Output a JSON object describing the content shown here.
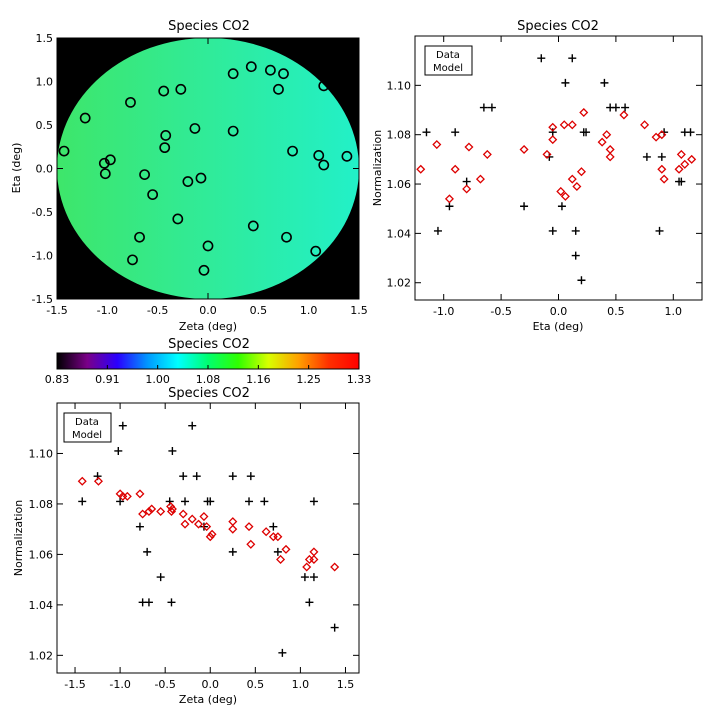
{
  "chart_data": [
    {
      "type": "heatmap",
      "title": "Species CO2",
      "xlabel": "Zeta (deg)",
      "ylabel": "Eta (deg)",
      "xlim": [
        -1.5,
        1.5
      ],
      "ylim": [
        -1.5,
        1.5
      ],
      "x_ticks": [
        "-1.5",
        "-1.0",
        "-0.5",
        "0.0",
        "0.5",
        "1.0",
        "1.5"
      ],
      "y_ticks": [
        "-1.5",
        "-1.0",
        "-0.5",
        "0.0",
        "0.5",
        "1.0",
        "1.5"
      ],
      "disk_color_range": [
        "#3ee66a",
        "#22f0c8"
      ],
      "background_color": "#000000",
      "points": [
        [
          -1.43,
          0.2
        ],
        [
          -1.22,
          0.58
        ],
        [
          -1.03,
          0.06
        ],
        [
          -1.02,
          -0.06
        ],
        [
          -0.97,
          0.1
        ],
        [
          -0.77,
          0.76
        ],
        [
          -0.75,
          -1.05
        ],
        [
          -0.68,
          -0.79
        ],
        [
          -0.63,
          -0.07
        ],
        [
          -0.55,
          -0.3
        ],
        [
          -0.44,
          0.89
        ],
        [
          -0.43,
          0.24
        ],
        [
          -0.42,
          0.38
        ],
        [
          -0.3,
          -0.58
        ],
        [
          -0.27,
          0.91
        ],
        [
          -0.2,
          -0.15
        ],
        [
          -0.13,
          0.46
        ],
        [
          -0.07,
          -0.11
        ],
        [
          -0.04,
          -1.17
        ],
        [
          0.0,
          -0.89
        ],
        [
          0.25,
          1.09
        ],
        [
          0.25,
          0.43
        ],
        [
          0.43,
          1.17
        ],
        [
          0.45,
          -0.66
        ],
        [
          0.62,
          1.13
        ],
        [
          0.7,
          0.91
        ],
        [
          0.75,
          1.09
        ],
        [
          0.78,
          -0.79
        ],
        [
          0.84,
          0.2
        ],
        [
          1.07,
          -0.95
        ],
        [
          1.1,
          0.15
        ],
        [
          1.15,
          0.95
        ],
        [
          1.15,
          0.04
        ],
        [
          1.38,
          0.14
        ]
      ]
    },
    {
      "type": "colorbar",
      "title": "Species CO2",
      "range": [
        0.83,
        1.33
      ],
      "tick_labels": [
        "0.83",
        "0.91",
        "1.00",
        "1.08",
        "1.16",
        "1.25",
        "1.33"
      ],
      "colormap": [
        "#000000",
        "#7a0088",
        "#2a00ff",
        "#0098ff",
        "#00ffff",
        "#00ff70",
        "#30ff00",
        "#d8ff00",
        "#ffa000",
        "#ff3000",
        "#ff0000"
      ]
    },
    {
      "type": "scatter",
      "title": "Species CO2",
      "xlabel": "Eta (deg)",
      "ylabel": "Normalization",
      "xlim": [
        -1.25,
        1.25
      ],
      "ylim": [
        1.013,
        1.12
      ],
      "x_ticks": [
        -1.0,
        -0.5,
        0.0,
        0.5,
        1.0
      ],
      "y_ticks": [
        1.02,
        1.04,
        1.06,
        1.08,
        1.1
      ],
      "x_tick_labels": [
        "-1.0",
        "-0.5",
        "0.0",
        "0.5",
        "1.0"
      ],
      "y_tick_labels": [
        "1.02",
        "1.04",
        "1.06",
        "1.08",
        "1.10"
      ],
      "legend": {
        "position": "top-left",
        "entries": [
          {
            "label": "Data",
            "color": "#000000"
          },
          {
            "label": "Model",
            "color": "#dd0000"
          }
        ]
      },
      "series": [
        {
          "name": "Data",
          "marker": "plus",
          "color": "#000000",
          "points": [
            [
              -1.15,
              1.081
            ],
            [
              -1.05,
              1.041
            ],
            [
              -0.95,
              1.051
            ],
            [
              -0.9,
              1.081
            ],
            [
              -0.8,
              1.061
            ],
            [
              -0.65,
              1.091
            ],
            [
              -0.58,
              1.091
            ],
            [
              -0.3,
              1.051
            ],
            [
              -0.15,
              1.111
            ],
            [
              -0.08,
              1.071
            ],
            [
              -0.05,
              1.041
            ],
            [
              -0.05,
              1.081
            ],
            [
              0.03,
              1.051
            ],
            [
              0.06,
              1.101
            ],
            [
              0.12,
              1.111
            ],
            [
              0.15,
              1.041
            ],
            [
              0.15,
              1.031
            ],
            [
              0.2,
              1.021
            ],
            [
              0.22,
              1.081
            ],
            [
              0.24,
              1.081
            ],
            [
              0.4,
              1.101
            ],
            [
              0.45,
              1.091
            ],
            [
              0.5,
              1.091
            ],
            [
              0.58,
              1.091
            ],
            [
              0.77,
              1.071
            ],
            [
              0.88,
              1.041
            ],
            [
              0.9,
              1.071
            ],
            [
              0.92,
              1.081
            ],
            [
              1.05,
              1.061
            ],
            [
              1.07,
              1.061
            ],
            [
              1.1,
              1.081
            ],
            [
              1.15,
              1.081
            ]
          ]
        },
        {
          "name": "Model",
          "marker": "diamond",
          "color": "#dd0000",
          "points": [
            [
              -1.2,
              1.066
            ],
            [
              -1.06,
              1.076
            ],
            [
              -0.95,
              1.054
            ],
            [
              -0.9,
              1.066
            ],
            [
              -0.8,
              1.058
            ],
            [
              -0.78,
              1.075
            ],
            [
              -0.68,
              1.062
            ],
            [
              -0.62,
              1.072
            ],
            [
              -0.3,
              1.074
            ],
            [
              -0.1,
              1.072
            ],
            [
              -0.05,
              1.083
            ],
            [
              -0.05,
              1.078
            ],
            [
              0.02,
              1.057
            ],
            [
              0.05,
              1.084
            ],
            [
              0.06,
              1.055
            ],
            [
              0.12,
              1.084
            ],
            [
              0.12,
              1.062
            ],
            [
              0.16,
              1.059
            ],
            [
              0.2,
              1.065
            ],
            [
              0.22,
              1.089
            ],
            [
              0.38,
              1.077
            ],
            [
              0.42,
              1.08
            ],
            [
              0.45,
              1.071
            ],
            [
              0.45,
              1.074
            ],
            [
              0.57,
              1.088
            ],
            [
              0.75,
              1.084
            ],
            [
              0.85,
              1.079
            ],
            [
              0.9,
              1.08
            ],
            [
              0.9,
              1.066
            ],
            [
              0.92,
              1.062
            ],
            [
              1.05,
              1.066
            ],
            [
              1.07,
              1.072
            ],
            [
              1.1,
              1.068
            ],
            [
              1.16,
              1.07
            ]
          ]
        }
      ]
    },
    {
      "type": "scatter",
      "title": "Species CO2",
      "xlabel": "Zeta (deg)",
      "ylabel": "Normalization",
      "xlim": [
        -1.7,
        1.65
      ],
      "ylim": [
        1.013,
        1.12
      ],
      "x_ticks": [
        -1.5,
        -1.0,
        -0.5,
        0.0,
        0.5,
        1.0,
        1.5
      ],
      "y_ticks": [
        1.02,
        1.04,
        1.06,
        1.08,
        1.1
      ],
      "x_tick_labels": [
        "-1.5",
        "-1.0",
        "-0.5",
        "0.0",
        "0.5",
        "1.0",
        "1.5"
      ],
      "y_tick_labels": [
        "1.02",
        "1.04",
        "1.06",
        "1.08",
        "1.10"
      ],
      "legend": {
        "position": "top-left",
        "entries": [
          {
            "label": "Data",
            "color": "#000000"
          },
          {
            "label": "Model",
            "color": "#dd0000"
          }
        ]
      },
      "series": [
        {
          "name": "Data",
          "marker": "plus",
          "color": "#000000",
          "points": [
            [
              -1.42,
              1.081
            ],
            [
              -1.25,
              1.091
            ],
            [
              -1.02,
              1.101
            ],
            [
              -1.0,
              1.081
            ],
            [
              -0.97,
              1.111
            ],
            [
              -0.78,
              1.071
            ],
            [
              -0.75,
              1.041
            ],
            [
              -0.7,
              1.061
            ],
            [
              -0.68,
              1.041
            ],
            [
              -0.55,
              1.051
            ],
            [
              -0.45,
              1.081
            ],
            [
              -0.43,
              1.041
            ],
            [
              -0.42,
              1.101
            ],
            [
              -0.3,
              1.091
            ],
            [
              -0.28,
              1.081
            ],
            [
              -0.2,
              1.111
            ],
            [
              -0.15,
              1.091
            ],
            [
              -0.07,
              1.071
            ],
            [
              -0.03,
              1.081
            ],
            [
              0.0,
              1.081
            ],
            [
              0.25,
              1.061
            ],
            [
              0.25,
              1.091
            ],
            [
              0.43,
              1.081
            ],
            [
              0.45,
              1.091
            ],
            [
              0.6,
              1.081
            ],
            [
              0.7,
              1.071
            ],
            [
              0.75,
              1.061
            ],
            [
              0.8,
              1.021
            ],
            [
              1.05,
              1.051
            ],
            [
              1.1,
              1.041
            ],
            [
              1.15,
              1.081
            ],
            [
              1.15,
              1.051
            ],
            [
              1.38,
              1.031
            ]
          ]
        },
        {
          "name": "Model",
          "marker": "diamond",
          "color": "#dd0000",
          "points": [
            [
              -1.42,
              1.089
            ],
            [
              -1.24,
              1.089
            ],
            [
              -1.0,
              1.084
            ],
            [
              -0.97,
              1.083
            ],
            [
              -0.92,
              1.083
            ],
            [
              -0.78,
              1.084
            ],
            [
              -0.75,
              1.076
            ],
            [
              -0.68,
              1.077
            ],
            [
              -0.65,
              1.078
            ],
            [
              -0.55,
              1.077
            ],
            [
              -0.44,
              1.079
            ],
            [
              -0.43,
              1.077
            ],
            [
              -0.42,
              1.078
            ],
            [
              -0.3,
              1.076
            ],
            [
              -0.28,
              1.072
            ],
            [
              -0.2,
              1.074
            ],
            [
              -0.13,
              1.072
            ],
            [
              -0.07,
              1.075
            ],
            [
              -0.04,
              1.071
            ],
            [
              0.0,
              1.067
            ],
            [
              0.02,
              1.068
            ],
            [
              0.25,
              1.073
            ],
            [
              0.25,
              1.07
            ],
            [
              0.43,
              1.071
            ],
            [
              0.45,
              1.064
            ],
            [
              0.62,
              1.069
            ],
            [
              0.7,
              1.067
            ],
            [
              0.75,
              1.067
            ],
            [
              0.78,
              1.058
            ],
            [
              0.84,
              1.062
            ],
            [
              1.07,
              1.055
            ],
            [
              1.1,
              1.058
            ],
            [
              1.15,
              1.061
            ],
            [
              1.15,
              1.058
            ],
            [
              1.38,
              1.055
            ]
          ]
        }
      ]
    }
  ]
}
